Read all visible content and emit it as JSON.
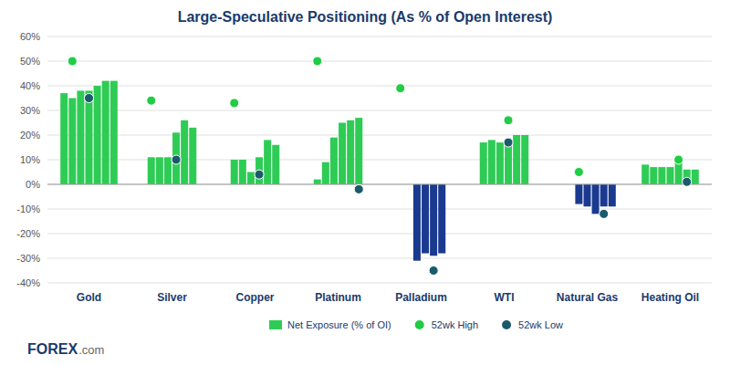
{
  "chart_data": {
    "type": "bar",
    "title": "Large-Speculative Positioning (As % of Open Interest)",
    "categories": [
      "Gold",
      "Silver",
      "Copper",
      "Platinum",
      "Palladium",
      "WTI",
      "Natural Gas",
      "Heating Oil"
    ],
    "series": [
      {
        "name": "Net Exposure (% of OI)",
        "type": "bar",
        "color": "#2ecc55",
        "values": [
          [
            37,
            35,
            38,
            38,
            40,
            42,
            42
          ],
          [
            11,
            11,
            11,
            21,
            26,
            23
          ],
          [
            10,
            10,
            5,
            11,
            18,
            16
          ],
          [
            2,
            9,
            19,
            25,
            26,
            27
          ],
          [
            0,
            0,
            -31,
            -28,
            -29,
            -28
          ],
          [
            17,
            18,
            17,
            18,
            20,
            20
          ],
          [
            0,
            0,
            -8,
            -9,
            -12,
            -9,
            -9
          ],
          [
            8,
            7,
            7,
            7,
            10,
            6,
            6
          ]
        ],
        "colors": [
          [
            "#2ecc55",
            "#2ecc55",
            "#2ecc55",
            "#2ecc55",
            "#2ecc55",
            "#2ecc55",
            "#2ecc55"
          ],
          [
            "#2ecc55",
            "#2ecc55",
            "#2ecc55",
            "#2ecc55",
            "#2ecc55",
            "#2ecc55"
          ],
          [
            "#2ecc55",
            "#2ecc55",
            "#2ecc55",
            "#2ecc55",
            "#2ecc55",
            "#2ecc55"
          ],
          [
            "#2ecc55",
            "#2ecc55",
            "#2ecc55",
            "#2ecc55",
            "#2ecc55",
            "#2ecc55"
          ],
          [
            "#2ecc55",
            "#2ecc55",
            "#1a3a8f",
            "#1a3a8f",
            "#1a3a8f",
            "#1a3a8f"
          ],
          [
            "#2ecc55",
            "#2ecc55",
            "#2ecc55",
            "#2ecc55",
            "#2ecc55",
            "#2ecc55"
          ],
          [
            "#2ecc55",
            "#2ecc55",
            "#1a3a8f",
            "#1a3a8f",
            "#1a3a8f",
            "#1a3a8f",
            "#1a3a8f"
          ],
          [
            "#2ecc55",
            "#2ecc55",
            "#2ecc55",
            "#2ecc55",
            "#2ecc55",
            "#2ecc55",
            "#2ecc55"
          ]
        ]
      },
      {
        "name": "52wk High",
        "type": "scatter",
        "marker": "circle",
        "color": "#22cc44",
        "values": [
          50,
          34,
          33,
          50,
          39,
          26,
          5,
          10
        ],
        "bar_index": [
          1,
          0,
          0,
          0,
          0,
          3,
          2,
          4
        ]
      },
      {
        "name": "52wk Low",
        "type": "scatter",
        "marker": "circle",
        "color": "#1a5a6b",
        "values": [
          35,
          10,
          4,
          -2,
          -35,
          17,
          -12,
          1
        ],
        "bar_index": [
          3,
          3,
          3,
          5,
          4,
          3,
          5,
          5
        ]
      }
    ],
    "ylim": [
      -40,
      60
    ],
    "yticks": [
      {
        "value": -40,
        "label": "-40%"
      },
      {
        "value": -30,
        "label": "-30%"
      },
      {
        "value": -20,
        "label": "-20%"
      },
      {
        "value": -10,
        "label": "-10%"
      },
      {
        "value": 0,
        "label": "0%"
      },
      {
        "value": 10,
        "label": "10%"
      },
      {
        "value": 20,
        "label": "20%"
      },
      {
        "value": 30,
        "label": "30%"
      },
      {
        "value": 40,
        "label": "40%"
      },
      {
        "value": 50,
        "label": "50%"
      },
      {
        "value": 60,
        "label": "60%"
      }
    ],
    "grid": true,
    "legend": "bottom",
    "annotations": [
      "FOREX",
      ".com"
    ]
  }
}
